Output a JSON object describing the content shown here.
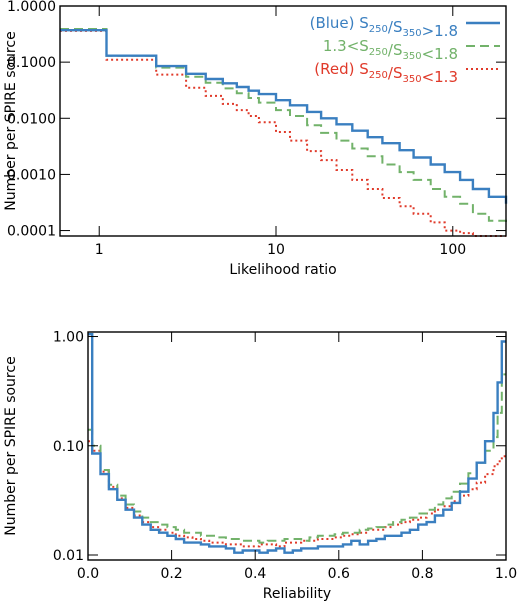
{
  "chart_data": [
    {
      "type": "line",
      "xlabel": "Likelihood ratio",
      "ylabel": "Number per SPIRE source",
      "xscale": "log",
      "yscale": "log",
      "xlim": [
        0.6,
        200
      ],
      "ylim": [
        8e-05,
        1.0
      ],
      "xticks": [
        {
          "value": 1,
          "label": "1"
        },
        {
          "value": 10,
          "label": "10"
        },
        {
          "value": 100,
          "label": "100"
        }
      ],
      "yticks": [
        {
          "value": 0.0001,
          "label": "0.0001"
        },
        {
          "value": 0.001,
          "label": "0.0010"
        },
        {
          "value": 0.01,
          "label": "0.0100"
        },
        {
          "value": 0.1,
          "label": "0.1000"
        },
        {
          "value": 1,
          "label": "1.0000"
        }
      ],
      "legend_position": "top-right",
      "series": [
        {
          "name": "(Blue) S250/S350>1.8",
          "legend": {
            "pre": "(Blue) S",
            "sub1": "250",
            "mid": "/S",
            "sub2": "350",
            "post": ">1.8"
          },
          "color": "#3a7fc0",
          "style": "solid",
          "x": [
            0.6,
            1.1,
            2.1,
            3.1,
            4,
            5,
            6,
            7,
            8,
            10,
            12,
            15,
            18,
            22,
            27,
            33,
            40,
            50,
            60,
            75,
            90,
            110,
            130,
            160,
            200
          ],
          "y": [
            0.37,
            0.13,
            0.085,
            0.062,
            0.05,
            0.042,
            0.036,
            0.031,
            0.027,
            0.021,
            0.017,
            0.013,
            0.01,
            0.0078,
            0.006,
            0.0046,
            0.0036,
            0.0027,
            0.002,
            0.0015,
            0.0011,
            0.0008,
            0.00055,
            0.0004,
            0.0003
          ]
        },
        {
          "name": "1.3<S250/S350<1.8",
          "legend": {
            "pre": "1.3<S",
            "sub1": "250",
            "mid": "/S",
            "sub2": "350",
            "post": "<1.8"
          },
          "color": "#72b26a",
          "style": "dashed",
          "x": [
            0.6,
            1.1,
            2.1,
            3.1,
            4,
            5,
            6,
            7,
            8,
            10,
            12,
            15,
            18,
            22,
            27,
            33,
            40,
            50,
            60,
            75,
            90,
            110,
            130,
            160,
            200
          ],
          "y": [
            0.39,
            0.13,
            0.08,
            0.055,
            0.043,
            0.034,
            0.028,
            0.023,
            0.019,
            0.014,
            0.011,
            0.0075,
            0.0055,
            0.004,
            0.0029,
            0.0021,
            0.0015,
            0.0011,
            0.0008,
            0.00055,
            0.0004,
            0.0003,
            0.0002,
            0.00015,
            0.00012
          ]
        },
        {
          "name": "(Red) S250/S350<1.3",
          "legend": {
            "pre": "(Red) S",
            "sub1": "250",
            "mid": "/S",
            "sub2": "350",
            "post": "<1.3"
          },
          "color": "#e03a2a",
          "style": "dotted",
          "x": [
            0.6,
            1.1,
            2.1,
            3.1,
            4,
            5,
            6,
            7,
            8,
            10,
            12,
            15,
            18,
            22,
            27,
            33,
            40,
            50,
            60,
            75,
            90,
            110,
            130,
            160,
            200
          ],
          "y": [
            0.36,
            0.11,
            0.06,
            0.035,
            0.025,
            0.018,
            0.014,
            0.011,
            0.0085,
            0.0057,
            0.004,
            0.0026,
            0.0018,
            0.0012,
            0.0008,
            0.00055,
            0.00038,
            0.00027,
            0.0002,
            0.00014,
            0.0001,
            9e-05,
            8e-05,
            8e-05,
            8e-05
          ]
        }
      ]
    },
    {
      "type": "line",
      "xlabel": "Reliability",
      "ylabel": "Number per SPIRE source",
      "xscale": "linear",
      "yscale": "log",
      "xlim": [
        0.0,
        1.0
      ],
      "ylim": [
        0.009,
        1.1
      ],
      "xticks": [
        {
          "value": 0.0,
          "label": "0.0"
        },
        {
          "value": 0.2,
          "label": "0.2"
        },
        {
          "value": 0.4,
          "label": "0.4"
        },
        {
          "value": 0.6,
          "label": "0.6"
        },
        {
          "value": 0.8,
          "label": "0.8"
        },
        {
          "value": 1.0,
          "label": "1.0"
        }
      ],
      "yticks": [
        {
          "value": 0.01,
          "label": "0.01"
        },
        {
          "value": 0.1,
          "label": "0.10"
        },
        {
          "value": 1.0,
          "label": "1.00"
        }
      ],
      "series": [
        {
          "name": "(Blue) S250/S350>1.8",
          "color": "#3a7fc0",
          "style": "solid",
          "x": [
            0.0,
            0.01,
            0.03,
            0.05,
            0.07,
            0.09,
            0.11,
            0.13,
            0.15,
            0.17,
            0.19,
            0.21,
            0.23,
            0.25,
            0.27,
            0.29,
            0.31,
            0.33,
            0.35,
            0.37,
            0.39,
            0.41,
            0.43,
            0.45,
            0.47,
            0.49,
            0.51,
            0.53,
            0.55,
            0.57,
            0.59,
            0.61,
            0.63,
            0.65,
            0.67,
            0.69,
            0.71,
            0.73,
            0.75,
            0.77,
            0.79,
            0.81,
            0.83,
            0.85,
            0.87,
            0.89,
            0.91,
            0.93,
            0.95,
            0.97,
            0.98,
            0.99
          ],
          "y": [
            1.05,
            0.085,
            0.055,
            0.04,
            0.032,
            0.026,
            0.022,
            0.019,
            0.017,
            0.016,
            0.015,
            0.014,
            0.013,
            0.013,
            0.0125,
            0.012,
            0.012,
            0.0115,
            0.0105,
            0.011,
            0.011,
            0.0105,
            0.011,
            0.0115,
            0.0105,
            0.011,
            0.0115,
            0.0115,
            0.012,
            0.012,
            0.012,
            0.0125,
            0.0135,
            0.0125,
            0.0135,
            0.014,
            0.015,
            0.015,
            0.016,
            0.017,
            0.019,
            0.02,
            0.023,
            0.026,
            0.03,
            0.038,
            0.05,
            0.07,
            0.11,
            0.2,
            0.38,
            0.9
          ]
        },
        {
          "name": "1.3<S250/S350<1.8",
          "color": "#72b26a",
          "style": "dashed",
          "x": [
            0.0,
            0.01,
            0.03,
            0.05,
            0.07,
            0.09,
            0.11,
            0.13,
            0.15,
            0.17,
            0.19,
            0.21,
            0.23,
            0.25,
            0.27,
            0.29,
            0.31,
            0.33,
            0.35,
            0.37,
            0.39,
            0.41,
            0.43,
            0.45,
            0.47,
            0.49,
            0.51,
            0.53,
            0.55,
            0.57,
            0.59,
            0.61,
            0.63,
            0.65,
            0.67,
            0.69,
            0.71,
            0.73,
            0.75,
            0.77,
            0.79,
            0.81,
            0.83,
            0.85,
            0.87,
            0.89,
            0.91,
            0.93,
            0.95,
            0.97,
            0.98,
            0.99
          ],
          "y": [
            0.14,
            0.1,
            0.06,
            0.044,
            0.035,
            0.029,
            0.025,
            0.022,
            0.02,
            0.019,
            0.018,
            0.017,
            0.016,
            0.016,
            0.015,
            0.015,
            0.0145,
            0.014,
            0.014,
            0.0135,
            0.0135,
            0.013,
            0.0135,
            0.0135,
            0.014,
            0.014,
            0.0135,
            0.0145,
            0.015,
            0.015,
            0.0155,
            0.016,
            0.016,
            0.017,
            0.0175,
            0.018,
            0.019,
            0.02,
            0.021,
            0.022,
            0.024,
            0.026,
            0.029,
            0.033,
            0.038,
            0.045,
            0.056,
            0.07,
            0.09,
            0.12,
            0.2,
            0.45
          ]
        },
        {
          "name": "(Red) S250/S350<1.3",
          "color": "#e03a2a",
          "style": "dotted",
          "x": [
            0.0,
            0.01,
            0.03,
            0.05,
            0.07,
            0.09,
            0.11,
            0.13,
            0.15,
            0.17,
            0.19,
            0.21,
            0.23,
            0.25,
            0.27,
            0.29,
            0.31,
            0.33,
            0.35,
            0.37,
            0.39,
            0.41,
            0.43,
            0.45,
            0.47,
            0.49,
            0.51,
            0.53,
            0.55,
            0.57,
            0.59,
            0.61,
            0.63,
            0.65,
            0.67,
            0.69,
            0.71,
            0.73,
            0.75,
            0.77,
            0.79,
            0.81,
            0.83,
            0.85,
            0.87,
            0.89,
            0.91,
            0.93,
            0.95,
            0.97,
            0.98,
            0.99
          ],
          "y": [
            0.11,
            0.09,
            0.058,
            0.042,
            0.033,
            0.027,
            0.023,
            0.02,
            0.018,
            0.017,
            0.016,
            0.015,
            0.0145,
            0.014,
            0.0135,
            0.013,
            0.013,
            0.0125,
            0.0125,
            0.012,
            0.012,
            0.0125,
            0.0125,
            0.012,
            0.013,
            0.013,
            0.0135,
            0.0135,
            0.014,
            0.014,
            0.0145,
            0.015,
            0.0155,
            0.016,
            0.017,
            0.017,
            0.018,
            0.019,
            0.02,
            0.021,
            0.022,
            0.024,
            0.026,
            0.028,
            0.031,
            0.035,
            0.04,
            0.046,
            0.055,
            0.065,
            0.072,
            0.08
          ]
        }
      ]
    }
  ]
}
